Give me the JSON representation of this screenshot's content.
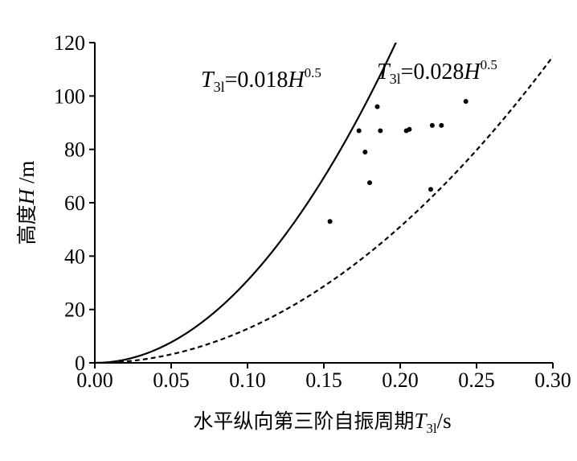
{
  "chart_data": {
    "type": "scatter",
    "xlabel": {
      "main": "水平纵向第三阶自振周期",
      "var": "T",
      "sub": "3l",
      "unit": "/s"
    },
    "ylabel": {
      "main": "高度",
      "var": "H",
      "unit": " /m"
    },
    "xlim": [
      0,
      0.3
    ],
    "ylim": [
      0,
      120
    ],
    "xticks": [
      "0.00",
      "0.05",
      "0.10",
      "0.15",
      "0.20",
      "0.25",
      "0.30"
    ],
    "yticks": [
      "0",
      "20",
      "40",
      "60",
      "80",
      "100",
      "120"
    ],
    "grid": false,
    "points": [
      {
        "x": 0.154,
        "y": 53
      },
      {
        "x": 0.173,
        "y": 87
      },
      {
        "x": 0.177,
        "y": 79
      },
      {
        "x": 0.18,
        "y": 67.5
      },
      {
        "x": 0.185,
        "y": 96
      },
      {
        "x": 0.187,
        "y": 87
      },
      {
        "x": 0.204,
        "y": 87
      },
      {
        "x": 0.206,
        "y": 87.5
      },
      {
        "x": 0.22,
        "y": 65
      },
      {
        "x": 0.221,
        "y": 89
      },
      {
        "x": 0.227,
        "y": 89
      },
      {
        "x": 0.243,
        "y": 98
      }
    ],
    "curves": [
      {
        "coef": 0.018,
        "exp": 0.5,
        "style": "solid",
        "label": {
          "T": "T",
          "sub": "3l",
          "eq": "=0.018",
          "H": "H",
          "sup": "0.5"
        }
      },
      {
        "coef": 0.028,
        "exp": 0.5,
        "style": "dashed",
        "label": {
          "T": "T",
          "sub": "3l",
          "eq": "=0.028",
          "H": "H",
          "sup": "0.5"
        }
      }
    ]
  }
}
